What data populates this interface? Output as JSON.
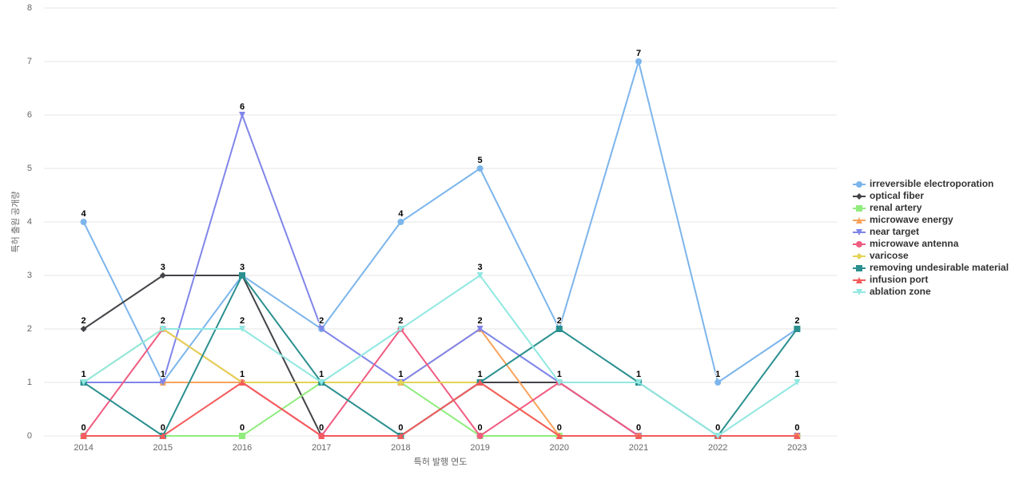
{
  "chart_data": {
    "type": "line",
    "x_label": "특허 발행 연도",
    "y_label": "특허 출원 공개량",
    "categories": [
      "2014",
      "2015",
      "2016",
      "2017",
      "2018",
      "2019",
      "2020",
      "2021",
      "2022",
      "2023"
    ],
    "ylim": [
      0,
      8
    ],
    "yticks": [
      0,
      1,
      2,
      3,
      4,
      5,
      6,
      7,
      8
    ],
    "grid": true,
    "legend": "right",
    "series": [
      {
        "name": "irreversible electroporation",
        "color": "#7cb5ec",
        "marker": "circle",
        "values": [
          4,
          1,
          3,
          2,
          4,
          5,
          2,
          7,
          1,
          2
        ]
      },
      {
        "name": "optical fiber",
        "color": "#434348",
        "marker": "diamond",
        "values": [
          2,
          3,
          3,
          0,
          0,
          1,
          1,
          0,
          0,
          0
        ]
      },
      {
        "name": "renal artery",
        "color": "#90ed7d",
        "marker": "square",
        "values": [
          0,
          0,
          0,
          1,
          1,
          0,
          0,
          0,
          0,
          0
        ]
      },
      {
        "name": "microwave energy",
        "color": "#f7a35c",
        "marker": "triangle",
        "values": [
          1,
          1,
          1,
          1,
          1,
          2,
          0,
          0,
          0,
          0
        ]
      },
      {
        "name": "near target",
        "color": "#8085e9",
        "marker": "triangle-down",
        "values": [
          1,
          1,
          6,
          2,
          1,
          2,
          1,
          0,
          0,
          0
        ]
      },
      {
        "name": "microwave antenna",
        "color": "#f15c80",
        "marker": "circle",
        "values": [
          0,
          2,
          1,
          0,
          2,
          0,
          1,
          0,
          0,
          0
        ]
      },
      {
        "name": "varicose",
        "color": "#e4d354",
        "marker": "diamond",
        "values": [
          1,
          2,
          1,
          1,
          1,
          1,
          0,
          0,
          0,
          0
        ]
      },
      {
        "name": "removing undesirable material",
        "color": "#2b908f",
        "marker": "square",
        "values": [
          1,
          0,
          3,
          1,
          0,
          1,
          2,
          1,
          0,
          2
        ]
      },
      {
        "name": "infusion port",
        "color": "#f45b5b",
        "marker": "triangle",
        "values": [
          0,
          0,
          1,
          0,
          0,
          1,
          0,
          0,
          0,
          0
        ]
      },
      {
        "name": "ablation zone",
        "color": "#91e8e1",
        "marker": "triangle-down",
        "values": [
          1,
          2,
          2,
          1,
          2,
          3,
          1,
          1,
          0,
          1
        ]
      }
    ]
  }
}
